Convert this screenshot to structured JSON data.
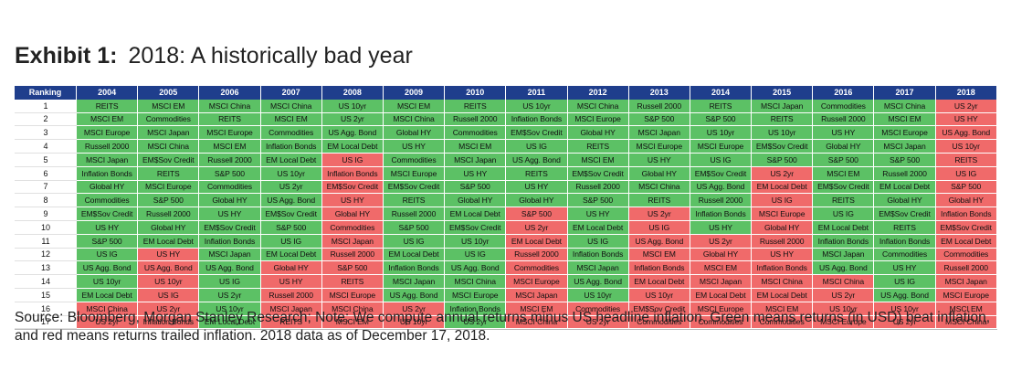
{
  "title": {
    "bold": "Exhibit 1:",
    "text": "2018: A historically bad year"
  },
  "source": "Source: Bloomberg, Morgan Stanley Research; Note: We compute annual returns minus US headline inflation. Green means returns (in USD) beat inflation, and red means returns trailed inflation. 2018 data as of December 17, 2018.",
  "colors": {
    "green": "#5cc165",
    "red": "#f06a6a",
    "header": "#1f3e8c"
  },
  "chart_data": {
    "type": "table",
    "row_header": "Ranking",
    "years": [
      "2004",
      "2005",
      "2006",
      "2007",
      "2008",
      "2009",
      "2010",
      "2011",
      "2012",
      "2013",
      "2014",
      "2015",
      "2016",
      "2017",
      "2018"
    ],
    "ranks": [
      "1",
      "2",
      "3",
      "4",
      "5",
      "6",
      "7",
      "8",
      "9",
      "10",
      "11",
      "12",
      "13",
      "14",
      "15",
      "16",
      "17"
    ],
    "columns": [
      {
        "year": "2004",
        "cells": [
          "REITS",
          "MSCI EM",
          "MSCI Europe",
          "Russell 2000",
          "MSCI Japan",
          "Inflation Bonds",
          "Global HY",
          "Commodities",
          "EM$Sov Credit",
          "US HY",
          "S&P 500",
          "US IG",
          "US Agg. Bond",
          "US 10yr",
          "EM Local Debt",
          "MSCI China",
          "US 2yr"
        ],
        "status": [
          "g",
          "g",
          "g",
          "g",
          "g",
          "g",
          "g",
          "g",
          "g",
          "g",
          "g",
          "g",
          "g",
          "g",
          "g",
          "r",
          "r"
        ]
      },
      {
        "year": "2005",
        "cells": [
          "MSCI EM",
          "Commodities",
          "MSCI Japan",
          "MSCI China",
          "EM$Sov Credit",
          "REITS",
          "MSCI Europe",
          "S&P 500",
          "Russell 2000",
          "Global HY",
          "EM Local Debt",
          "US HY",
          "US Agg. Bond",
          "US 10yr",
          "US IG",
          "US 2yr",
          "Inflation Bonds"
        ],
        "status": [
          "g",
          "g",
          "g",
          "g",
          "g",
          "g",
          "g",
          "g",
          "g",
          "g",
          "g",
          "r",
          "r",
          "r",
          "r",
          "r",
          "r"
        ]
      },
      {
        "year": "2006",
        "cells": [
          "MSCI China",
          "REITS",
          "MSCI Europe",
          "MSCI EM",
          "Russell 2000",
          "S&P 500",
          "Commodities",
          "Global HY",
          "US HY",
          "EM$Sov Credit",
          "Inflation Bonds",
          "MSCI Japan",
          "US Agg. Bond",
          "US IG",
          "US 2yr",
          "US 10yr",
          "EM Local Debt"
        ],
        "status": [
          "g",
          "g",
          "g",
          "g",
          "g",
          "g",
          "g",
          "g",
          "g",
          "g",
          "g",
          "g",
          "g",
          "g",
          "g",
          "g",
          "g"
        ]
      },
      {
        "year": "2007",
        "cells": [
          "MSCI China",
          "MSCI EM",
          "Commodities",
          "Inflation Bonds",
          "EM Local Debt",
          "US 10yr",
          "US 2yr",
          "US Agg. Bond",
          "EM$Sov Credit",
          "S&P 500",
          "US IG",
          "EM Local Debt",
          "Global HY",
          "US HY",
          "Russell 2000",
          "MSCI Japan",
          "REITS"
        ],
        "status": [
          "g",
          "g",
          "g",
          "g",
          "g",
          "g",
          "g",
          "g",
          "g",
          "g",
          "g",
          "g",
          "r",
          "r",
          "r",
          "r",
          "r"
        ]
      },
      {
        "year": "2008",
        "cells": [
          "US 10yr",
          "US 2yr",
          "US Agg. Bond",
          "EM Local Debt",
          "US IG",
          "Inflation Bonds",
          "EM$Sov Credit",
          "US HY",
          "Global HY",
          "Commodities",
          "MSCI Japan",
          "Russell 2000",
          "S&P 500",
          "REITS",
          "MSCI Europe",
          "MSCI China",
          "MSCI EM"
        ],
        "status": [
          "g",
          "g",
          "g",
          "g",
          "r",
          "r",
          "r",
          "r",
          "r",
          "r",
          "r",
          "r",
          "r",
          "r",
          "r",
          "r",
          "r"
        ]
      },
      {
        "year": "2009",
        "cells": [
          "MSCI EM",
          "MSCI China",
          "Global HY",
          "US HY",
          "Commodities",
          "MSCI Europe",
          "EM$Sov Credit",
          "REITS",
          "Russell 2000",
          "S&P 500",
          "US IG",
          "EM Local Debt",
          "Inflation Bonds",
          "MSCI Japan",
          "US Agg. Bond",
          "US 2yr",
          "US 10yr"
        ],
        "status": [
          "g",
          "g",
          "g",
          "g",
          "g",
          "g",
          "g",
          "g",
          "g",
          "g",
          "g",
          "g",
          "g",
          "g",
          "g",
          "r",
          "r"
        ]
      },
      {
        "year": "2010",
        "cells": [
          "REITS",
          "Russell 2000",
          "Commodities",
          "MSCI EM",
          "MSCI Japan",
          "US HY",
          "S&P 500",
          "Global HY",
          "EM Local Debt",
          "EM$Sov Credit",
          "US 10yr",
          "US IG",
          "US Agg. Bond",
          "MSCI China",
          "MSCI Europe",
          "Inflation Bonds",
          "US 2yr"
        ],
        "status": [
          "g",
          "g",
          "g",
          "g",
          "g",
          "g",
          "g",
          "g",
          "g",
          "g",
          "g",
          "g",
          "g",
          "g",
          "g",
          "g",
          "g"
        ]
      },
      {
        "year": "2011",
        "cells": [
          "US 10yr",
          "Inflation Bonds",
          "EM$Sov Credit",
          "US IG",
          "US Agg. Bond",
          "REITS",
          "US HY",
          "Global HY",
          "S&P 500",
          "US 2yr",
          "EM Local Debt",
          "Russell 2000",
          "Commodities",
          "MSCI Europe",
          "MSCI Japan",
          "MSCI EM",
          "MSCI China"
        ],
        "status": [
          "g",
          "g",
          "g",
          "g",
          "g",
          "g",
          "g",
          "g",
          "r",
          "r",
          "r",
          "r",
          "r",
          "r",
          "r",
          "r",
          "r"
        ]
      },
      {
        "year": "2012",
        "cells": [
          "MSCI China",
          "MSCI Europe",
          "Global HY",
          "REITS",
          "MSCI EM",
          "EM$Sov Credit",
          "Russell 2000",
          "S&P 500",
          "US HY",
          "EM Local Debt",
          "US IG",
          "Inflation Bonds",
          "MSCI Japan",
          "US Agg. Bond",
          "US 10yr",
          "Commodities",
          "US 2yr"
        ],
        "status": [
          "g",
          "g",
          "g",
          "g",
          "g",
          "g",
          "g",
          "g",
          "g",
          "g",
          "g",
          "g",
          "g",
          "g",
          "g",
          "r",
          "r"
        ]
      },
      {
        "year": "2013",
        "cells": [
          "Russell 2000",
          "S&P 500",
          "MSCI Japan",
          "MSCI Europe",
          "US HY",
          "Global HY",
          "MSCI China",
          "REITS",
          "US 2yr",
          "US IG",
          "US Agg. Bond",
          "MSCI EM",
          "Inflation Bonds",
          "EM Local Debt",
          "US 10yr",
          "EM$Sov Credit",
          "Commodities"
        ],
        "status": [
          "g",
          "g",
          "g",
          "g",
          "g",
          "g",
          "g",
          "g",
          "r",
          "r",
          "r",
          "r",
          "r",
          "r",
          "r",
          "r",
          "r"
        ]
      },
      {
        "year": "2014",
        "cells": [
          "REITS",
          "S&P 500",
          "US 10yr",
          "MSCI Europe",
          "US IG",
          "EM$Sov Credit",
          "US Agg. Bond",
          "Russell 2000",
          "Inflation Bonds",
          "US HY",
          "US 2yr",
          "Global HY",
          "MSCI EM",
          "MSCI Japan",
          "EM Local Debt",
          "MSCI Europe",
          "Commodities"
        ],
        "status": [
          "g",
          "g",
          "g",
          "g",
          "g",
          "g",
          "g",
          "g",
          "g",
          "g",
          "r",
          "r",
          "r",
          "r",
          "r",
          "r",
          "r"
        ]
      },
      {
        "year": "2015",
        "cells": [
          "MSCI Japan",
          "REITS",
          "US 10yr",
          "EM$Sov Credit",
          "S&P 500",
          "US 2yr",
          "EM Local Debt",
          "US IG",
          "MSCI Europe",
          "Global HY",
          "Russell 2000",
          "US HY",
          "Inflation Bonds",
          "MSCI China",
          "EM Local Debt",
          "MSCI EM",
          "Commodities"
        ],
        "status": [
          "g",
          "g",
          "g",
          "g",
          "g",
          "r",
          "r",
          "r",
          "r",
          "r",
          "r",
          "r",
          "r",
          "r",
          "r",
          "r",
          "r"
        ]
      },
      {
        "year": "2016",
        "cells": [
          "Commodities",
          "Russell 2000",
          "US HY",
          "Global HY",
          "S&P 500",
          "MSCI EM",
          "EM$Sov Credit",
          "REITS",
          "US IG",
          "EM Local Debt",
          "Inflation Bonds",
          "MSCI Japan",
          "US Agg. Bond",
          "MSCI China",
          "US 2yr",
          "US 10yr",
          "MSCI Europe"
        ],
        "status": [
          "g",
          "g",
          "g",
          "g",
          "g",
          "g",
          "g",
          "g",
          "g",
          "g",
          "g",
          "g",
          "g",
          "r",
          "r",
          "r",
          "r"
        ]
      },
      {
        "year": "2017",
        "cells": [
          "MSCI China",
          "MSCI EM",
          "MSCI Europe",
          "MSCI Japan",
          "S&P 500",
          "Russell 2000",
          "EM Local Debt",
          "Global HY",
          "EM$Sov Credit",
          "REITS",
          "Inflation Bonds",
          "Commodities",
          "US HY",
          "US IG",
          "US Agg. Bond",
          "US 10yr",
          "US 2yr"
        ],
        "status": [
          "g",
          "g",
          "g",
          "g",
          "g",
          "g",
          "g",
          "g",
          "g",
          "g",
          "g",
          "g",
          "g",
          "g",
          "g",
          "r",
          "r"
        ]
      },
      {
        "year": "2018",
        "cells": [
          "US 2yr",
          "US HY",
          "US Agg. Bond",
          "US 10yr",
          "REITS",
          "US IG",
          "S&P 500",
          "Global HY",
          "Inflation Bonds",
          "EM$Sov Credit",
          "EM Local Debt",
          "Commodities",
          "Russell 2000",
          "MSCI Japan",
          "MSCI Europe",
          "MSCI EM",
          "MSCI China"
        ],
        "status": [
          "r",
          "r",
          "r",
          "r",
          "r",
          "r",
          "r",
          "r",
          "r",
          "r",
          "r",
          "r",
          "r",
          "r",
          "r",
          "r",
          "r"
        ]
      }
    ]
  }
}
